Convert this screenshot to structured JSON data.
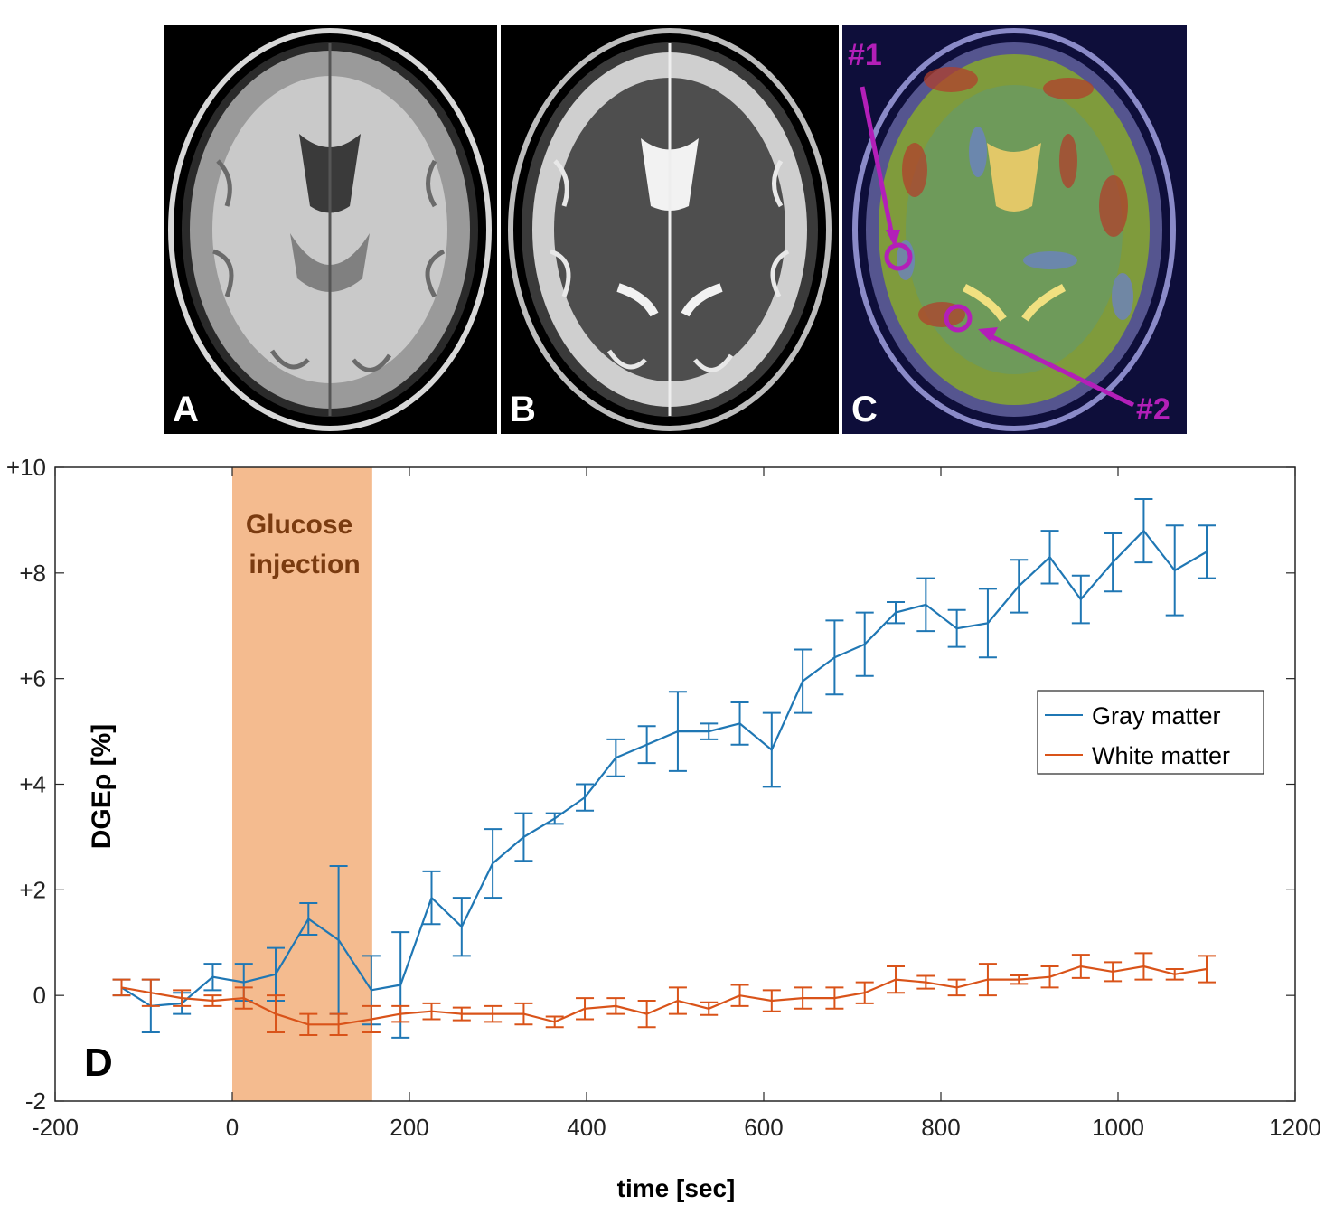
{
  "panels": [
    {
      "label": "A"
    },
    {
      "label": "B"
    },
    {
      "label": "C",
      "roi_labels": [
        "#1",
        "#2"
      ]
    }
  ],
  "colors": {
    "gray_matter": "#1f77b4",
    "white_matter": "#d95319",
    "injection_band": "#f4bb8f",
    "injection_text": "#7a3b10",
    "roi_marker": "#b31fb8"
  },
  "chart_data": {
    "type": "line",
    "panel_label": "D",
    "xlabel": "time [sec]",
    "ylabel": "DGEρ [%]",
    "xlim": [
      -200,
      1200
    ],
    "ylim": [
      -2,
      10
    ],
    "xticks": [
      -200,
      0,
      200,
      400,
      600,
      800,
      1000,
      1200
    ],
    "xtick_labels": [
      "-200",
      "0",
      "200",
      "400",
      "600",
      "800",
      "1000",
      "1200"
    ],
    "yticks": [
      -2,
      0,
      2,
      4,
      6,
      8,
      10
    ],
    "ytick_labels": [
      "-2",
      "0",
      "+2",
      "+4",
      "+6",
      "+8",
      "+10"
    ],
    "annotation": {
      "text_line1": "Glucose",
      "text_line2": "injection",
      "x_start": 0,
      "x_end": 158
    },
    "legend": {
      "position": "right",
      "entries": [
        "Gray matter",
        "White matter"
      ]
    },
    "x": [
      -125,
      -92,
      -57,
      -22,
      13,
      49,
      86,
      120,
      157,
      190,
      225,
      259,
      294,
      329,
      364,
      398,
      433,
      468,
      503,
      538,
      573,
      609,
      644,
      680,
      714,
      749,
      783,
      818,
      853,
      888,
      923,
      958,
      994,
      1029,
      1064,
      1100
    ],
    "series": [
      {
        "name": "Gray matter",
        "values": [
          0.15,
          -0.2,
          -0.15,
          0.35,
          0.25,
          0.4,
          1.45,
          1.05,
          0.1,
          0.2,
          1.85,
          1.3,
          2.5,
          3.0,
          3.35,
          3.75,
          4.5,
          4.75,
          5.0,
          5.0,
          5.15,
          4.65,
          5.95,
          6.4,
          6.65,
          7.25,
          7.4,
          6.95,
          7.05,
          7.75,
          8.3,
          7.5,
          8.2,
          8.8,
          8.05,
          8.4
        ],
        "errors": [
          0.15,
          0.5,
          0.2,
          0.25,
          0.35,
          0.5,
          0.3,
          1.4,
          0.65,
          1.0,
          0.5,
          0.55,
          0.65,
          0.45,
          0.1,
          0.25,
          0.35,
          0.35,
          0.75,
          0.15,
          0.4,
          0.7,
          0.6,
          0.7,
          0.6,
          0.2,
          0.5,
          0.35,
          0.65,
          0.5,
          0.5,
          0.45,
          0.55,
          0.6,
          0.85,
          0.5
        ]
      },
      {
        "name": "White matter",
        "values": [
          0.15,
          0.05,
          -0.05,
          -0.1,
          -0.05,
          -0.35,
          -0.55,
          -0.55,
          -0.45,
          -0.35,
          -0.3,
          -0.35,
          -0.35,
          -0.35,
          -0.5,
          -0.25,
          -0.2,
          -0.35,
          -0.1,
          -0.25,
          0.0,
          -0.1,
          -0.05,
          -0.05,
          0.05,
          0.3,
          0.25,
          0.15,
          0.3,
          0.3,
          0.35,
          0.55,
          0.45,
          0.55,
          0.4,
          0.5
        ],
        "errors": [
          0.15,
          0.25,
          0.15,
          0.1,
          0.2,
          0.35,
          0.2,
          0.2,
          0.25,
          0.15,
          0.15,
          0.12,
          0.15,
          0.2,
          0.1,
          0.2,
          0.15,
          0.25,
          0.25,
          0.12,
          0.2,
          0.2,
          0.2,
          0.2,
          0.2,
          0.25,
          0.12,
          0.15,
          0.3,
          0.08,
          0.2,
          0.22,
          0.18,
          0.25,
          0.1,
          0.25
        ]
      }
    ]
  }
}
